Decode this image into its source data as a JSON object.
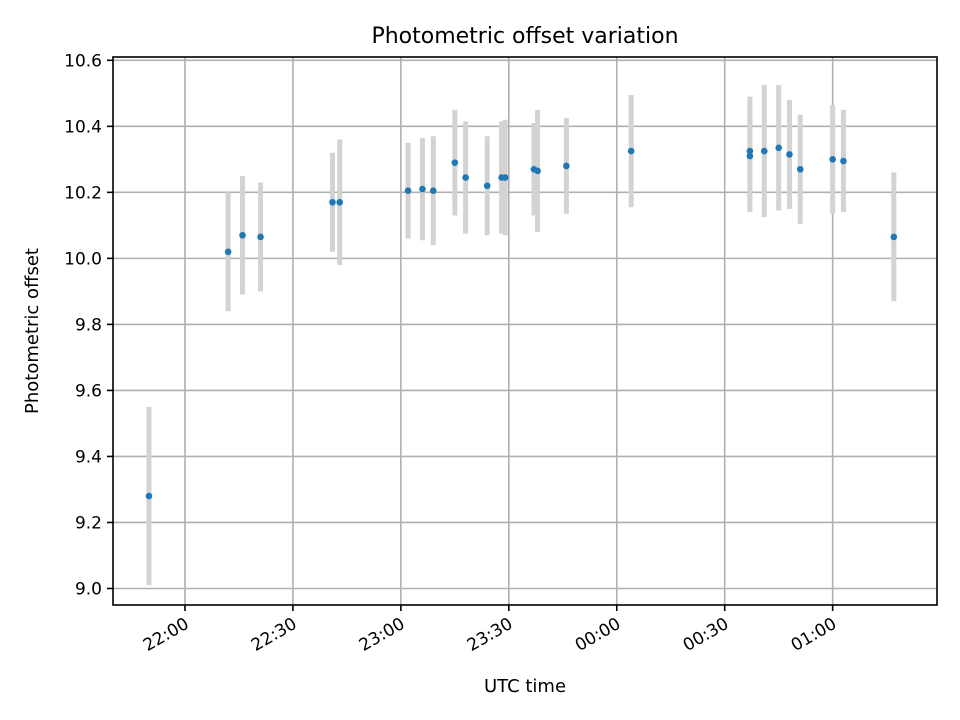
{
  "chart_data": {
    "type": "scatter",
    "title": "Photometric offset variation",
    "xlabel": "UTC time",
    "ylabel": "Photometric offset",
    "x_axis": {
      "kind": "time",
      "range": [
        "21:40",
        "01:29"
      ],
      "ticks": [
        "22:00",
        "22:30",
        "23:00",
        "23:30",
        "00:00",
        "00:30",
        "01:00"
      ]
    },
    "y_axis": {
      "range": [
        8.95,
        10.61
      ],
      "ticks": [
        "9.0",
        "9.2",
        "9.4",
        "9.6",
        "9.8",
        "10.0",
        "10.2",
        "10.4",
        "10.6"
      ]
    },
    "grid": true,
    "colors": {
      "point": "#1f77b4",
      "errorbar": "#d3d3d3",
      "grid": "#b0b0b0"
    },
    "series": [
      {
        "points": [
          {
            "t": "21:50",
            "y": 9.28,
            "err": 0.27
          },
          {
            "t": "22:12",
            "y": 10.02,
            "err": 0.18
          },
          {
            "t": "22:16",
            "y": 10.07,
            "err": 0.18
          },
          {
            "t": "22:21",
            "y": 10.065,
            "err": 0.165
          },
          {
            "t": "22:41",
            "y": 10.17,
            "err": 0.15
          },
          {
            "t": "22:43",
            "y": 10.17,
            "err": 0.19
          },
          {
            "t": "23:02",
            "y": 10.205,
            "err": 0.145
          },
          {
            "t": "23:06",
            "y": 10.21,
            "err": 0.155
          },
          {
            "t": "23:09",
            "y": 10.205,
            "err": 0.165
          },
          {
            "t": "23:15",
            "y": 10.29,
            "err": 0.16
          },
          {
            "t": "23:18",
            "y": 10.245,
            "err": 0.17
          },
          {
            "t": "23:24",
            "y": 10.22,
            "err": 0.15
          },
          {
            "t": "23:28",
            "y": 10.245,
            "err": 0.17
          },
          {
            "t": "23:29",
            "y": 10.245,
            "err": 0.175
          },
          {
            "t": "23:37",
            "y": 10.27,
            "err": 0.14
          },
          {
            "t": "23:38",
            "y": 10.265,
            "err": 0.185
          },
          {
            "t": "23:46",
            "y": 10.28,
            "err": 0.145
          },
          {
            "t": "00:04",
            "y": 10.325,
            "err": 0.17
          },
          {
            "t": "00:37",
            "y": 10.31,
            "err": 0.17
          },
          {
            "t": "00:37",
            "y": 10.325,
            "err": 0.165
          },
          {
            "t": "00:41",
            "y": 10.325,
            "err": 0.2
          },
          {
            "t": "00:45",
            "y": 10.335,
            "err": 0.19
          },
          {
            "t": "00:48",
            "y": 10.315,
            "err": 0.165
          },
          {
            "t": "00:51",
            "y": 10.27,
            "err": 0.165
          },
          {
            "t": "01:00",
            "y": 10.3,
            "err": 0.165
          },
          {
            "t": "01:03",
            "y": 10.295,
            "err": 0.155
          },
          {
            "t": "01:17",
            "y": 10.065,
            "err": 0.195
          }
        ]
      }
    ]
  }
}
